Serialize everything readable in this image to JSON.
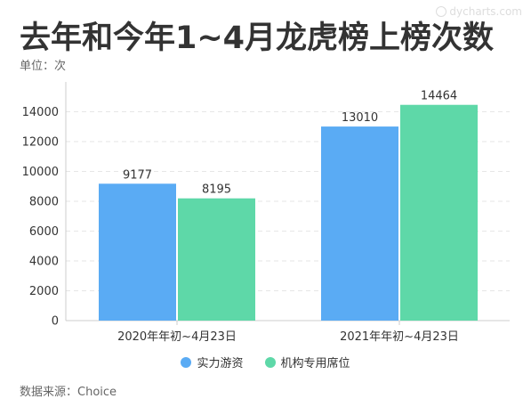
{
  "header": {
    "title": "去年和今年1~4月龙虎榜上榜次数",
    "unit": "单位：次"
  },
  "watermark": {
    "text": "dycharts.com",
    "icon": "dycharts-logo-icon"
  },
  "footer": {
    "source": "数据来源：Choice"
  },
  "colors": {
    "series_1": "#5aabf4",
    "series_2": "#5ed8a8",
    "axis": "#cccccc",
    "grid": "#e6e6e6"
  },
  "chart_data": {
    "type": "bar",
    "title": "去年和今年1~4月龙虎榜上榜次数",
    "xlabel": "",
    "ylabel": "",
    "categories": [
      "2020年年初~4月23日",
      "2021年年初~4月23日"
    ],
    "series": [
      {
        "name": "实力游资",
        "values": [
          9177,
          13010
        ]
      },
      {
        "name": "机构专用席位",
        "values": [
          8195,
          14464
        ]
      }
    ],
    "ylim": [
      0,
      14000
    ],
    "yticks": [
      0,
      2000,
      4000,
      6000,
      8000,
      10000,
      12000,
      14000
    ],
    "grid": true,
    "legend": "bottom-center",
    "data_labels": true
  }
}
